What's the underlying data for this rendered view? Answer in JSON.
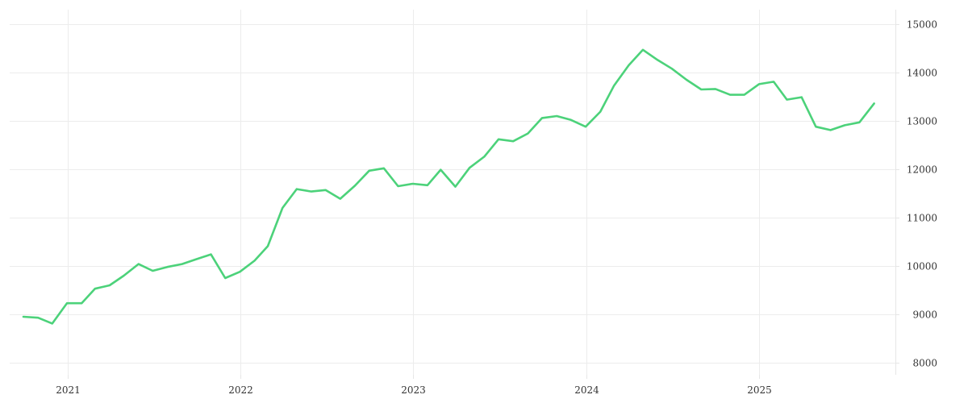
{
  "chart_data": {
    "type": "line",
    "title": "",
    "xlabel": "",
    "ylabel": "",
    "ylim": [
      7750,
      15300
    ],
    "xlim": [
      "2020-09-01",
      "2025-10-15"
    ],
    "y_ticks": [
      "8000",
      "9000",
      "10000",
      "11000",
      "12000",
      "13000",
      "14000",
      "15000"
    ],
    "x_ticks": [
      {
        "date": "2021-01-01",
        "label": "2021"
      },
      {
        "date": "2022-01-01",
        "label": "2022"
      },
      {
        "date": "2023-01-01",
        "label": "2023"
      },
      {
        "date": "2024-01-01",
        "label": "2024"
      },
      {
        "date": "2025-01-01",
        "label": "2025"
      }
    ],
    "grid": true,
    "legend": "none",
    "y_axis_position": "right",
    "series": [
      {
        "color": "#4cd27a",
        "points": [
          [
            "2020-09-30",
            8950
          ],
          [
            "2020-10-31",
            8930
          ],
          [
            "2020-11-30",
            8810
          ],
          [
            "2020-12-31",
            9230
          ],
          [
            "2021-01-31",
            9230
          ],
          [
            "2021-02-28",
            9530
          ],
          [
            "2021-03-31",
            9600
          ],
          [
            "2021-04-30",
            9800
          ],
          [
            "2021-05-31",
            10040
          ],
          [
            "2021-06-30",
            9900
          ],
          [
            "2021-07-31",
            9980
          ],
          [
            "2021-08-31",
            10040
          ],
          [
            "2021-09-30",
            10140
          ],
          [
            "2021-10-31",
            10240
          ],
          [
            "2021-11-30",
            9750
          ],
          [
            "2021-12-31",
            9880
          ],
          [
            "2022-01-31",
            10110
          ],
          [
            "2022-02-28",
            10410
          ],
          [
            "2022-03-31",
            11200
          ],
          [
            "2022-04-30",
            11590
          ],
          [
            "2022-05-31",
            11540
          ],
          [
            "2022-06-30",
            11570
          ],
          [
            "2022-07-31",
            11390
          ],
          [
            "2022-08-31",
            11660
          ],
          [
            "2022-09-30",
            11970
          ],
          [
            "2022-10-31",
            12020
          ],
          [
            "2022-11-30",
            11650
          ],
          [
            "2022-12-31",
            11700
          ],
          [
            "2023-01-31",
            11670
          ],
          [
            "2023-02-28",
            11990
          ],
          [
            "2023-03-31",
            11640
          ],
          [
            "2023-04-30",
            12030
          ],
          [
            "2023-05-31",
            12260
          ],
          [
            "2023-06-30",
            12620
          ],
          [
            "2023-07-31",
            12580
          ],
          [
            "2023-08-31",
            12740
          ],
          [
            "2023-09-30",
            13060
          ],
          [
            "2023-10-31",
            13100
          ],
          [
            "2023-11-30",
            13020
          ],
          [
            "2023-12-31",
            12880
          ],
          [
            "2024-01-31",
            13190
          ],
          [
            "2024-02-29",
            13730
          ],
          [
            "2024-03-31",
            14150
          ],
          [
            "2024-04-30",
            14470
          ],
          [
            "2024-05-31",
            14260
          ],
          [
            "2024-06-30",
            14080
          ],
          [
            "2024-07-31",
            13850
          ],
          [
            "2024-08-31",
            13650
          ],
          [
            "2024-09-30",
            13660
          ],
          [
            "2024-10-31",
            13540
          ],
          [
            "2024-11-30",
            13540
          ],
          [
            "2024-12-31",
            13760
          ],
          [
            "2025-01-31",
            13810
          ],
          [
            "2025-02-28",
            13440
          ],
          [
            "2025-03-31",
            13490
          ],
          [
            "2025-04-30",
            12880
          ],
          [
            "2025-05-31",
            12810
          ],
          [
            "2025-06-30",
            12910
          ],
          [
            "2025-07-31",
            12970
          ],
          [
            "2025-08-31",
            13360
          ]
        ]
      }
    ]
  }
}
